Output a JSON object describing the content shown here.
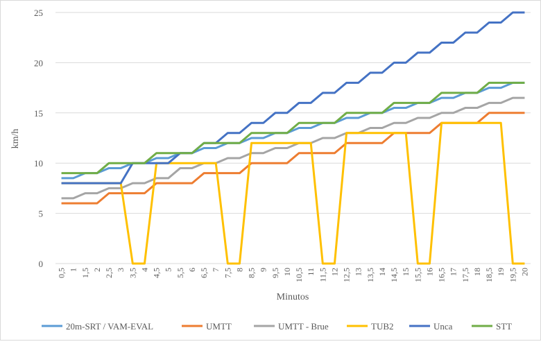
{
  "chart_data": {
    "type": "line",
    "title": "",
    "xlabel": "Minutos",
    "ylabel": "km/h",
    "ylim": [
      0,
      25
    ],
    "yticks": [
      0,
      5,
      10,
      15,
      20,
      25
    ],
    "grid": true,
    "legend_position": "bottom",
    "categories": [
      "0,5",
      "1",
      "1,5",
      "2",
      "2,5",
      "3",
      "3,5",
      "4",
      "4,5",
      "5",
      "5,5",
      "6",
      "6,5",
      "7",
      "7,5",
      "8",
      "8,5",
      "9",
      "9,5",
      "10",
      "10,5",
      "11",
      "11,5",
      "12",
      "12,5",
      "13",
      "13,5",
      "14",
      "14,5",
      "15",
      "15,5",
      "16",
      "16,5",
      "17",
      "17,5",
      "18",
      "18,5",
      "19",
      "19,5",
      "20"
    ],
    "series": [
      {
        "name": "20m-SRT / VAM-EVAL",
        "color": "#5B9BD5",
        "values": [
          8.5,
          8.5,
          9,
          9,
          9.5,
          9.5,
          10,
          10,
          10.5,
          10.5,
          11,
          11,
          11.5,
          11.5,
          12,
          12,
          12.5,
          12.5,
          13,
          13,
          13.5,
          13.5,
          14,
          14,
          14.5,
          14.5,
          15,
          15,
          15.5,
          15.5,
          16,
          16,
          16.5,
          16.5,
          17,
          17,
          17.5,
          17.5,
          18,
          18
        ]
      },
      {
        "name": "UMTT",
        "color": "#ED7D31",
        "values": [
          6,
          6,
          6,
          6,
          7,
          7,
          7,
          7,
          8,
          8,
          8,
          8,
          9,
          9,
          9,
          9,
          10,
          10,
          10,
          10,
          11,
          11,
          11,
          11,
          12,
          12,
          12,
          12,
          13,
          13,
          13,
          13,
          14,
          14,
          14,
          14,
          15,
          15,
          15,
          15
        ]
      },
      {
        "name": "UMTT - Brue",
        "color": "#A5A5A5",
        "values": [
          6.5,
          6.5,
          7,
          7,
          7.5,
          7.5,
          8,
          8,
          8.5,
          8.5,
          9.5,
          9.5,
          10,
          10,
          10.5,
          10.5,
          11,
          11,
          11.5,
          11.5,
          12,
          12,
          12.5,
          12.5,
          13,
          13,
          13.5,
          13.5,
          14,
          14,
          14.5,
          14.5,
          15,
          15,
          15.5,
          15.5,
          16,
          16,
          16.5,
          16.5
        ]
      },
      {
        "name": "TUB2",
        "color": "#FFC000",
        "values": [
          8,
          8,
          8,
          8,
          8,
          8,
          0,
          0,
          10,
          10,
          10,
          10,
          10,
          10,
          0,
          0,
          12,
          12,
          12,
          12,
          12,
          12,
          0,
          0,
          13,
          13,
          13,
          13,
          13,
          13,
          0,
          0,
          14,
          14,
          14,
          14,
          14,
          14,
          0,
          0
        ]
      },
      {
        "name": "Unca",
        "color": "#4472C4",
        "values": [
          8,
          8,
          8,
          8,
          8,
          8,
          10,
          10,
          10,
          10,
          11,
          11,
          12,
          12,
          13,
          13,
          14,
          14,
          15,
          15,
          16,
          16,
          17,
          17,
          18,
          18,
          19,
          19,
          20,
          20,
          21,
          21,
          22,
          22,
          23,
          23,
          24,
          24,
          25,
          25
        ]
      },
      {
        "name": "STT",
        "color": "#70AD47",
        "values": [
          9,
          9,
          9,
          9,
          10,
          10,
          10,
          10,
          11,
          11,
          11,
          11,
          12,
          12,
          12,
          12,
          13,
          13,
          13,
          13,
          14,
          14,
          14,
          14,
          15,
          15,
          15,
          15,
          16,
          16,
          16,
          16,
          17,
          17,
          17,
          17,
          18,
          18,
          18,
          18
        ]
      }
    ]
  }
}
